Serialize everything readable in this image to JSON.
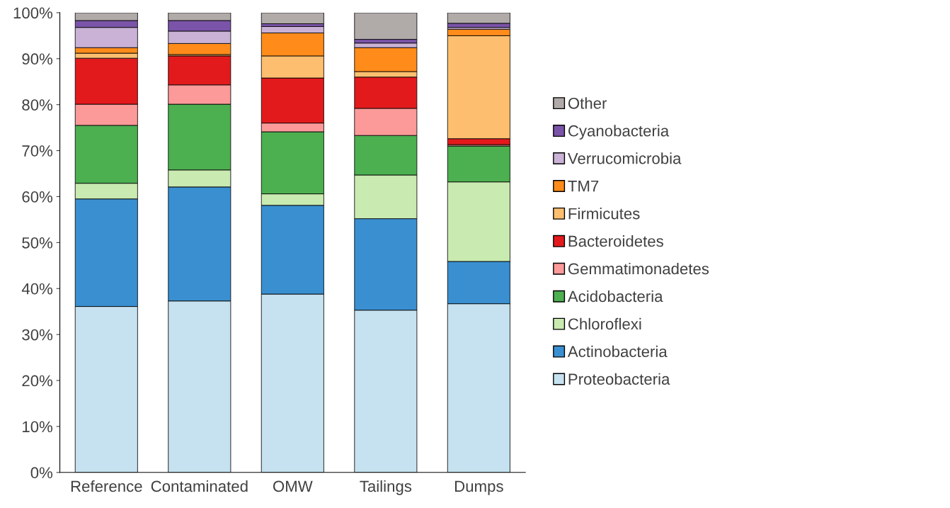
{
  "chart_data": {
    "type": "bar",
    "stacked": true,
    "categories": [
      "Reference",
      "Contaminated",
      "OMW",
      "Tailings",
      "Dumps"
    ],
    "series": [
      {
        "name": "Proteobacteria",
        "color": "#c6e2f0",
        "values": [
          36.1,
          37.3,
          38.8,
          35.3,
          36.7
        ]
      },
      {
        "name": "Actinobacteria",
        "color": "#3a8fd0",
        "values": [
          23.4,
          24.8,
          19.3,
          19.9,
          9.2
        ]
      },
      {
        "name": "Chloroflexi",
        "color": "#c9eab0",
        "values": [
          3.4,
          3.7,
          2.5,
          9.5,
          17.3
        ]
      },
      {
        "name": "Acidobacteria",
        "color": "#4caf50",
        "values": [
          12.6,
          14.3,
          13.5,
          8.6,
          7.8
        ]
      },
      {
        "name": "Gemmatimonadetes",
        "color": "#fb9a99",
        "values": [
          4.6,
          4.2,
          1.9,
          5.9,
          0.3
        ]
      },
      {
        "name": "Bacteroidetes",
        "color": "#e31a1c",
        "values": [
          10.0,
          6.3,
          9.8,
          6.8,
          1.3
        ]
      },
      {
        "name": "Firmicutes",
        "color": "#fdbf6f",
        "values": [
          1.1,
          0.3,
          4.8,
          1.2,
          22.4
        ]
      },
      {
        "name": "TM7",
        "color": "#ff8c1a",
        "values": [
          1.2,
          2.4,
          5.0,
          5.2,
          1.4
        ]
      },
      {
        "name": "Verrucomicrobia",
        "color": "#cab2d6",
        "values": [
          4.4,
          2.7,
          1.4,
          1.0,
          0.4
        ]
      },
      {
        "name": "Cyanobacteria",
        "color": "#7a54a8",
        "values": [
          1.5,
          2.3,
          0.6,
          0.8,
          0.9
        ]
      },
      {
        "name": "Other",
        "color": "#b0aaa9",
        "values": [
          1.7,
          1.7,
          2.4,
          5.8,
          2.3
        ]
      }
    ],
    "ylim": [
      0,
      100
    ],
    "yticks": [
      {
        "value": 0,
        "label": "0%"
      },
      {
        "value": 10,
        "label": "10%"
      },
      {
        "value": 20,
        "label": "20%"
      },
      {
        "value": 30,
        "label": "30%"
      },
      {
        "value": 40,
        "label": "40%"
      },
      {
        "value": 50,
        "label": "50%"
      },
      {
        "value": 60,
        "label": "60%"
      },
      {
        "value": 70,
        "label": "70%"
      },
      {
        "value": 80,
        "label": "80%"
      },
      {
        "value": 90,
        "label": "90%"
      },
      {
        "value": 100,
        "label": "100%"
      }
    ],
    "grid": false,
    "legend": "right"
  }
}
